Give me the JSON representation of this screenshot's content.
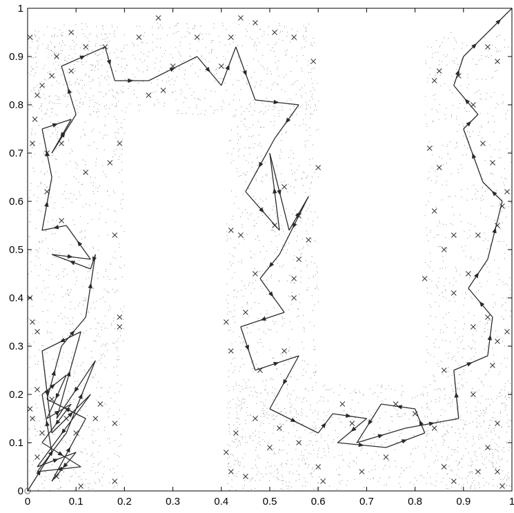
{
  "chart_data": {
    "type": "scatter",
    "title": "",
    "xlabel": "",
    "ylabel": "",
    "xlim": [
      0,
      1
    ],
    "ylim": [
      0,
      1
    ],
    "grid": false,
    "x_ticks": [
      "0",
      "0.1",
      "0.2",
      "0.3",
      "0.4",
      "0.5",
      "0.6",
      "0.7",
      "0.8",
      "0.9",
      "1"
    ],
    "y_ticks": [
      "0",
      "0.1",
      "0.2",
      "0.3",
      "0.4",
      "0.5",
      "0.6",
      "0.7",
      "0.8",
      "0.9",
      "1"
    ],
    "colors": {
      "dots": "#8a8a8a",
      "crosses": "#3a3a3a",
      "path": "#2a2a2a"
    },
    "dot_regions": [
      {
        "x": [
          0.0,
          0.2
        ],
        "y": [
          0.0,
          0.95
        ],
        "n": 900
      },
      {
        "x": [
          0.0,
          0.6
        ],
        "y": [
          0.78,
          0.97
        ],
        "n": 650
      },
      {
        "x": [
          0.41,
          0.6
        ],
        "y": [
          0.0,
          0.8
        ],
        "n": 750
      },
      {
        "x": [
          0.41,
          1.0
        ],
        "y": [
          0.0,
          0.22
        ],
        "n": 650
      },
      {
        "x": [
          0.82,
          1.0
        ],
        "y": [
          0.0,
          0.95
        ],
        "n": 750
      }
    ],
    "crosses": [
      [
        0.005,
        0.94
      ],
      [
        0.01,
        0.72
      ],
      [
        0.02,
        0.82
      ],
      [
        0.03,
        0.84
      ],
      [
        0.04,
        0.7
      ],
      [
        0.05,
        0.86
      ],
      [
        0.06,
        0.9
      ],
      [
        0.09,
        0.95
      ],
      [
        0.09,
        0.87
      ],
      [
        0.12,
        0.92
      ],
      [
        0.16,
        0.92
      ],
      [
        0.015,
        0.77
      ],
      [
        0.07,
        0.72
      ],
      [
        0.12,
        0.66
      ],
      [
        0.17,
        0.68
      ],
      [
        0.19,
        0.72
      ],
      [
        0.04,
        0.62
      ],
      [
        0.005,
        0.4
      ],
      [
        0.01,
        0.35
      ],
      [
        0.02,
        0.33
      ],
      [
        0.07,
        0.56
      ],
      [
        0.18,
        0.53
      ],
      [
        0.19,
        0.36
      ],
      [
        0.19,
        0.34
      ],
      [
        0.005,
        0.17
      ],
      [
        0.01,
        0.15
      ],
      [
        0.02,
        0.21
      ],
      [
        0.03,
        0.12
      ],
      [
        0.05,
        0.19
      ],
      [
        0.08,
        0.15
      ],
      [
        0.1,
        0.12
      ],
      [
        0.14,
        0.15
      ],
      [
        0.15,
        0.18
      ],
      [
        0.18,
        0.14
      ],
      [
        0.11,
        0.01
      ],
      [
        0.18,
        0.02
      ],
      [
        0.06,
        0.03
      ],
      [
        0.02,
        0.07
      ],
      [
        0.27,
        0.98
      ],
      [
        0.23,
        0.94
      ],
      [
        0.3,
        0.88
      ],
      [
        0.35,
        0.94
      ],
      [
        0.42,
        0.94
      ],
      [
        0.44,
        0.98
      ],
      [
        0.47,
        0.97
      ],
      [
        0.51,
        0.95
      ],
      [
        0.55,
        0.94
      ],
      [
        0.59,
        0.89
      ],
      [
        0.4,
        0.88
      ],
      [
        0.28,
        0.83
      ],
      [
        0.25,
        0.82
      ],
      [
        0.42,
        0.54
      ],
      [
        0.44,
        0.53
      ],
      [
        0.45,
        0.37
      ],
      [
        0.41,
        0.35
      ],
      [
        0.42,
        0.29
      ],
      [
        0.47,
        0.45
      ],
      [
        0.51,
        0.55
      ],
      [
        0.53,
        0.63
      ],
      [
        0.56,
        0.48
      ],
      [
        0.58,
        0.52
      ],
      [
        0.56,
        0.57
      ],
      [
        0.55,
        0.44
      ],
      [
        0.55,
        0.4
      ],
      [
        0.6,
        0.67
      ],
      [
        0.53,
        0.29
      ],
      [
        0.48,
        0.25
      ],
      [
        0.41,
        0.08
      ],
      [
        0.42,
        0.04
      ],
      [
        0.43,
        0.12
      ],
      [
        0.47,
        0.15
      ],
      [
        0.45,
        0.03
      ],
      [
        0.5,
        0.09
      ],
      [
        0.52,
        0.13
      ],
      [
        0.56,
        0.1
      ],
      [
        0.6,
        0.05
      ],
      [
        0.61,
        0.02
      ],
      [
        0.65,
        0.18
      ],
      [
        0.67,
        0.14
      ],
      [
        0.69,
        0.04
      ],
      [
        0.74,
        0.07
      ],
      [
        0.76,
        0.18
      ],
      [
        0.8,
        0.16
      ],
      [
        0.84,
        0.13
      ],
      [
        0.86,
        0.05
      ],
      [
        0.88,
        0.02
      ],
      [
        0.93,
        0.04
      ],
      [
        0.95,
        0.09
      ],
      [
        0.97,
        0.04
      ],
      [
        0.98,
        0.01
      ],
      [
        0.97,
        0.14
      ],
      [
        0.92,
        0.2
      ],
      [
        0.96,
        0.26
      ],
      [
        0.97,
        0.31
      ],
      [
        0.92,
        0.34
      ],
      [
        0.88,
        0.41
      ],
      [
        0.82,
        0.44
      ],
      [
        0.84,
        0.58
      ],
      [
        0.86,
        0.5
      ],
      [
        0.85,
        0.67
      ],
      [
        0.83,
        0.71
      ],
      [
        0.84,
        0.85
      ],
      [
        0.85,
        0.87
      ],
      [
        0.89,
        0.86
      ],
      [
        0.92,
        0.8
      ],
      [
        0.95,
        0.92
      ],
      [
        0.97,
        0.89
      ],
      [
        0.94,
        0.72
      ],
      [
        0.96,
        0.68
      ],
      [
        0.99,
        0.62
      ],
      [
        0.98,
        0.59
      ],
      [
        0.97,
        0.55
      ],
      [
        0.93,
        0.53
      ],
      [
        0.91,
        0.45
      ],
      [
        0.88,
        0.53
      ],
      [
        0.95,
        0.36
      ],
      [
        0.86,
        0.25
      ],
      [
        0.99,
        0.33
      ]
    ],
    "paths": [
      [
        [
          0.0,
          0.0
        ],
        [
          0.05,
          0.08
        ],
        [
          0.03,
          0.2
        ],
        [
          0.08,
          0.24
        ],
        [
          0.04,
          0.15
        ],
        [
          0.09,
          0.18
        ],
        [
          0.03,
          0.1
        ],
        [
          0.11,
          0.05
        ],
        [
          0.02,
          0.04
        ],
        [
          0.08,
          0.12
        ],
        [
          0.14,
          0.27
        ],
        [
          0.06,
          0.15
        ],
        [
          0.11,
          0.33
        ],
        [
          0.03,
          0.29
        ],
        [
          0.05,
          0.12
        ],
        [
          0.13,
          0.2
        ],
        [
          0.02,
          0.05
        ],
        [
          0.1,
          0.08
        ],
        [
          0.05,
          0.02
        ],
        [
          0.12,
          0.15
        ],
        [
          0.04,
          0.19
        ],
        [
          0.07,
          0.3
        ]
      ],
      [
        [
          0.07,
          0.3
        ],
        [
          0.12,
          0.36
        ],
        [
          0.14,
          0.49
        ],
        [
          0.13,
          0.46
        ],
        [
          0.05,
          0.49
        ],
        [
          0.13,
          0.48
        ],
        [
          0.08,
          0.55
        ],
        [
          0.03,
          0.54
        ],
        [
          0.05,
          0.65
        ],
        [
          0.03,
          0.75
        ],
        [
          0.09,
          0.77
        ],
        [
          0.05,
          0.7
        ],
        [
          0.1,
          0.78
        ],
        [
          0.07,
          0.88
        ]
      ],
      [
        [
          0.07,
          0.88
        ],
        [
          0.16,
          0.92
        ],
        [
          0.18,
          0.85
        ],
        [
          0.25,
          0.85
        ],
        [
          0.35,
          0.9
        ],
        [
          0.4,
          0.84
        ],
        [
          0.43,
          0.92
        ],
        [
          0.47,
          0.81
        ],
        [
          0.56,
          0.8
        ],
        [
          0.51,
          0.73
        ],
        [
          0.45,
          0.62
        ],
        [
          0.52,
          0.54
        ],
        [
          0.5,
          0.7
        ],
        [
          0.54,
          0.54
        ],
        [
          0.58,
          0.61
        ],
        [
          0.52,
          0.49
        ],
        [
          0.48,
          0.44
        ],
        [
          0.53,
          0.37
        ],
        [
          0.44,
          0.34
        ],
        [
          0.47,
          0.25
        ],
        [
          0.56,
          0.28
        ],
        [
          0.5,
          0.17
        ],
        [
          0.6,
          0.12
        ]
      ],
      [
        [
          0.6,
          0.12
        ],
        [
          0.63,
          0.16
        ],
        [
          0.7,
          0.15
        ],
        [
          0.64,
          0.1
        ],
        [
          0.74,
          0.09
        ],
        [
          0.82,
          0.12
        ],
        [
          0.8,
          0.17
        ],
        [
          0.73,
          0.18
        ],
        [
          0.68,
          0.1
        ],
        [
          0.78,
          0.13
        ],
        [
          0.89,
          0.15
        ],
        [
          0.88,
          0.25
        ],
        [
          0.95,
          0.28
        ],
        [
          0.96,
          0.36
        ],
        [
          0.91,
          0.42
        ],
        [
          0.95,
          0.48
        ],
        [
          0.98,
          0.6
        ],
        [
          0.94,
          0.64
        ],
        [
          0.9,
          0.75
        ],
        [
          0.93,
          0.78
        ],
        [
          0.88,
          0.84
        ],
        [
          0.9,
          0.9
        ],
        [
          0.95,
          0.95
        ],
        [
          1.0,
          1.0
        ]
      ]
    ]
  }
}
